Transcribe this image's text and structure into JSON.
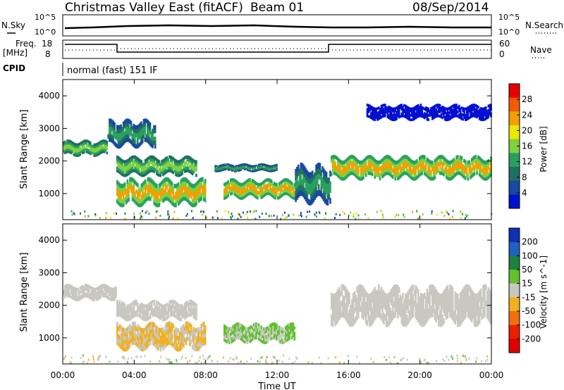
{
  "header": {
    "title": "Christmas Valley East (fitACF)",
    "beam": "Beam 01",
    "date": "08/Sep/2014"
  },
  "aux_panels": {
    "nsky_label": "N.Sky",
    "nsearch_label": "N.Search",
    "nsky_ticks": [
      "10^5",
      "10^0"
    ],
    "freq_label_1": "Freq.",
    "freq_label_2": "[MHz]",
    "freq_ticks": [
      "18",
      "8"
    ],
    "nave_ticks": [
      "60",
      "0"
    ],
    "nave_label": "Nave",
    "cpid_label": "CPID",
    "cpid_value": "normal (fast) 151 IF"
  },
  "chart_data": [
    {
      "type": "heatmap",
      "name": "power",
      "ylabel": "Slant Range [km]",
      "xlabel": "",
      "ylim": [
        200,
        4500
      ],
      "xlim_hours": [
        0,
        24
      ],
      "yticks": [
        "1000",
        "2000",
        "3000",
        "4000"
      ],
      "colorbar": {
        "label": "Power [dB]",
        "ticks": [
          "28",
          "24",
          "20",
          "16",
          "12",
          "8",
          "4"
        ],
        "colors": [
          "#e80000",
          "#f05a00",
          "#f0a000",
          "#e8e800",
          "#80d040",
          "#2aa060",
          "#207060",
          "#1848a0",
          "#0010d0"
        ]
      },
      "bands": [
        {
          "t0": 0,
          "t1": 2.5,
          "r0": 2200,
          "r1": 2600,
          "level": 16
        },
        {
          "t0": 2.5,
          "t1": 5.2,
          "r0": 2500,
          "r1": 3200,
          "level": 12
        },
        {
          "t0": 3,
          "t1": 7.5,
          "r0": 1600,
          "r1": 2100,
          "level": 16
        },
        {
          "t0": 3,
          "t1": 8,
          "r0": 700,
          "r1": 1400,
          "level": 24
        },
        {
          "t0": 8.5,
          "t1": 12,
          "r0": 1700,
          "r1": 1900,
          "level": 12
        },
        {
          "t0": 9,
          "t1": 13,
          "r0": 900,
          "r1": 1400,
          "level": 24
        },
        {
          "t0": 13,
          "t1": 15,
          "r0": 800,
          "r1": 1800,
          "level": 12
        },
        {
          "t0": 15,
          "t1": 24,
          "r0": 1500,
          "r1": 2100,
          "level": 24
        },
        {
          "t0": 17,
          "t1": 24,
          "r0": 3300,
          "r1": 3700,
          "level": 4
        }
      ]
    },
    {
      "type": "heatmap",
      "name": "velocity",
      "ylabel": "Slant Range [km]",
      "xlabel": "Time UT",
      "ylim": [
        200,
        4500
      ],
      "xlim_hours": [
        0,
        24
      ],
      "yticks": [
        "1000",
        "2000",
        "3000",
        "4000"
      ],
      "xticks": [
        "00:00",
        "04:00",
        "08:00",
        "12:00",
        "16:00",
        "20:00",
        "00:00"
      ],
      "colorbar": {
        "label": "Velocity [m s^-1]",
        "ticks": [
          "200",
          "100",
          "50",
          "15",
          "-15",
          "-50",
          "-100",
          "-200"
        ],
        "colors": [
          "#1030b0",
          "#2060c0",
          "#208040",
          "#60c030",
          "#c8c8c0",
          "#f0b020",
          "#f07010",
          "#e82000",
          "#e00000"
        ]
      },
      "bands": [
        {
          "t0": 0,
          "t1": 3,
          "r0": 2200,
          "r1": 2600,
          "level": 0
        },
        {
          "t0": 3,
          "t1": 7.5,
          "r0": 1600,
          "r1": 2100,
          "level": 0
        },
        {
          "t0": 3,
          "t1": 8,
          "r0": 700,
          "r1": 1400,
          "level": -30
        },
        {
          "t0": 9,
          "t1": 13,
          "r0": 900,
          "r1": 1400,
          "level": 30
        },
        {
          "t0": 15,
          "t1": 24,
          "r0": 1500,
          "r1": 2500,
          "level": 0
        }
      ]
    }
  ]
}
